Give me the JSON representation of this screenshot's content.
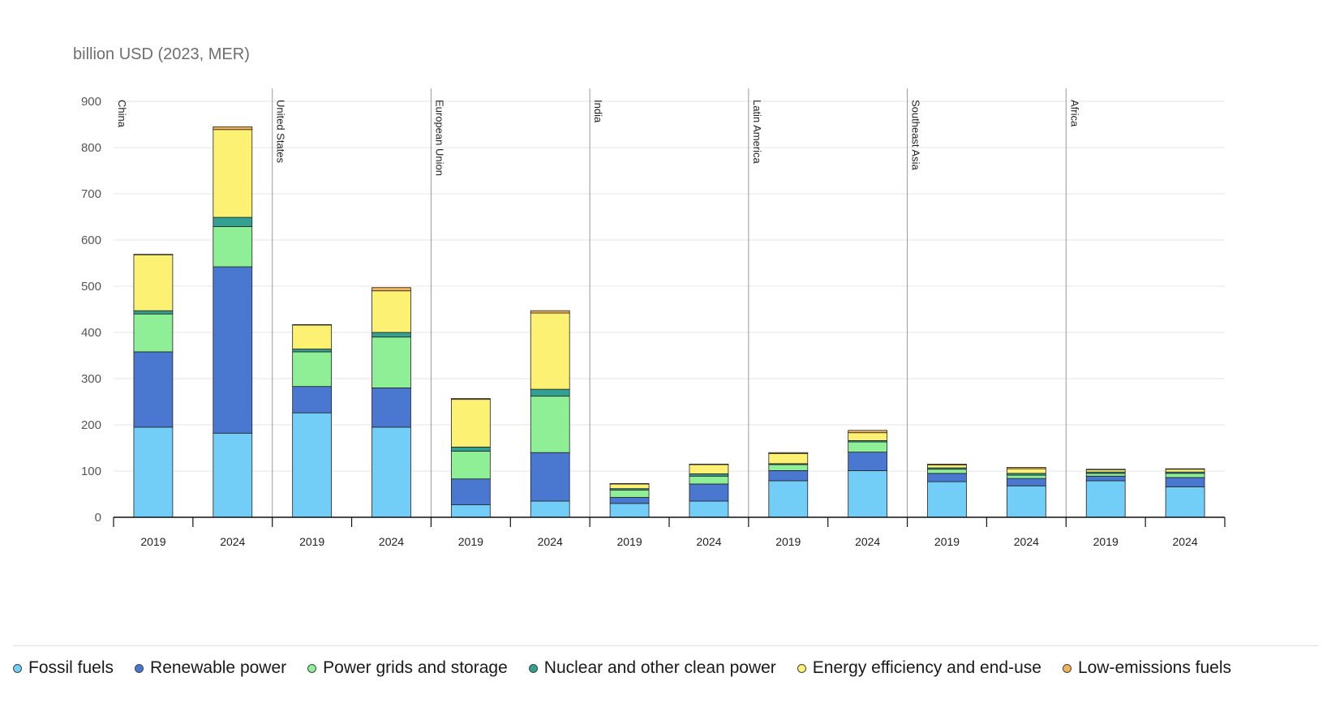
{
  "chart_data": {
    "type": "bar",
    "stacked": true,
    "unit_label": "billion USD (2023, MER)",
    "ylim": [
      0,
      900
    ],
    "yticks": [
      0,
      100,
      200,
      300,
      400,
      500,
      600,
      700,
      800,
      900
    ],
    "grid": true,
    "legend_position": "bottom",
    "groups": [
      {
        "name": "China",
        "years": [
          "2019",
          "2024"
        ]
      },
      {
        "name": "United States",
        "years": [
          "2019",
          "2024"
        ]
      },
      {
        "name": "European Union",
        "years": [
          "2019",
          "2024"
        ]
      },
      {
        "name": "India",
        "years": [
          "2019",
          "2024"
        ]
      },
      {
        "name": "Latin America",
        "years": [
          "2019",
          "2024"
        ]
      },
      {
        "name": "Southeast Asia",
        "years": [
          "2019",
          "2024"
        ]
      },
      {
        "name": "Africa",
        "years": [
          "2019",
          "2024"
        ]
      }
    ],
    "series": [
      {
        "name": "Fossil fuels",
        "color": "#72cdf7",
        "values": [
          195,
          182,
          226,
          195,
          27,
          35,
          30,
          35,
          79,
          101,
          77,
          68,
          79,
          66
        ]
      },
      {
        "name": "Renewable power",
        "color": "#4a77cf",
        "values": [
          163,
          360,
          57,
          85,
          56,
          105,
          13,
          37,
          22,
          40,
          18,
          16,
          10,
          20
        ]
      },
      {
        "name": "Power grids and storage",
        "color": "#8fef97",
        "values": [
          82,
          87,
          75,
          110,
          60,
          122,
          16,
          17,
          13,
          22,
          9,
          7,
          6,
          9
        ]
      },
      {
        "name": "Nuclear and other clean power",
        "color": "#33a091",
        "values": [
          7,
          20,
          6,
          10,
          9,
          15,
          3,
          5,
          2,
          3,
          3,
          4,
          3,
          3
        ]
      },
      {
        "name": "Energy efficiency and end-use",
        "color": "#fdf173",
        "values": [
          121,
          190,
          52,
          90,
          103,
          165,
          10,
          20,
          22,
          17,
          6,
          10,
          5,
          6
        ]
      },
      {
        "name": "Low-emissions fuels",
        "color": "#f2b25b",
        "values": [
          1,
          6,
          1,
          7,
          2,
          5,
          1,
          1,
          2,
          5,
          2,
          3,
          1,
          1
        ]
      }
    ]
  },
  "legend": [
    {
      "label": "Fossil fuels",
      "color": "#72cdf7"
    },
    {
      "label": "Renewable power",
      "color": "#4a77cf"
    },
    {
      "label": "Power grids and storage",
      "color": "#8fef97"
    },
    {
      "label": "Nuclear and other clean power",
      "color": "#33a091"
    },
    {
      "label": "Energy efficiency and end-use",
      "color": "#fdf173"
    },
    {
      "label": "Low-emissions fuels",
      "color": "#f2b25b"
    }
  ]
}
